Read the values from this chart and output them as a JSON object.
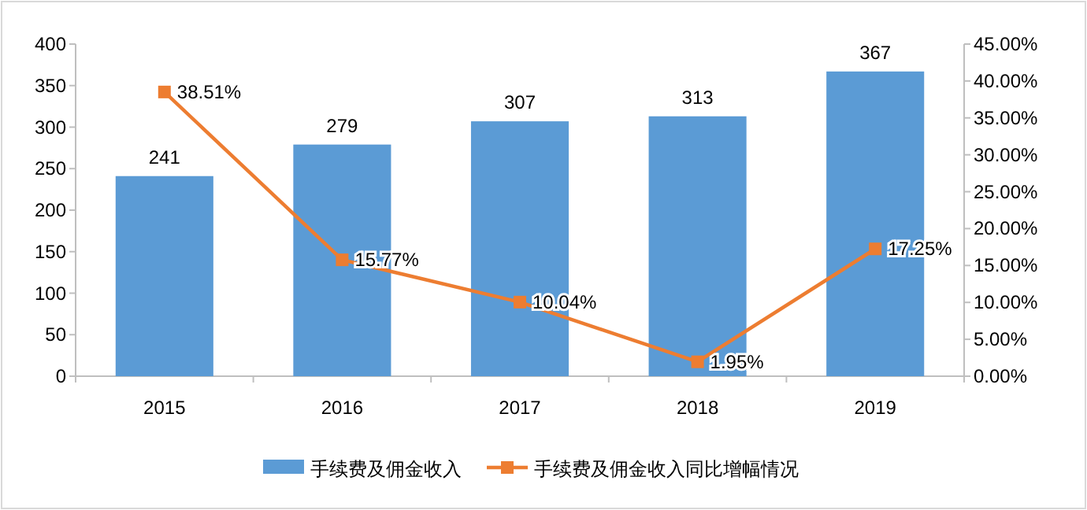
{
  "chart_data": {
    "type": "bar",
    "categories": [
      "2015",
      "2016",
      "2017",
      "2018",
      "2019"
    ],
    "ylim": [
      0,
      400
    ],
    "yticks": [
      0,
      50,
      100,
      150,
      200,
      250,
      300,
      350,
      400
    ],
    "y2lim": [
      0,
      45
    ],
    "y2ticks": [
      {
        "value": 0,
        "label": "0.00%"
      },
      {
        "value": 5,
        "label": "5.00%"
      },
      {
        "value": 10,
        "label": "10.00%"
      },
      {
        "value": 15,
        "label": "15.00%"
      },
      {
        "value": 20,
        "label": "20.00%"
      },
      {
        "value": 25,
        "label": "25.00%"
      },
      {
        "value": 30,
        "label": "30.00%"
      },
      {
        "value": 35,
        "label": "35.00%"
      },
      {
        "value": 40,
        "label": "40.00%"
      },
      {
        "value": 45,
        "label": "45.00%"
      }
    ],
    "series": [
      {
        "name": "手续费及佣金收入",
        "color": "#5b9bd5",
        "values": [
          241,
          279,
          307,
          313,
          367
        ],
        "value_labels": [
          "241",
          "279",
          "307",
          "313",
          "367"
        ]
      },
      {
        "name": "手续费及佣金收入同比增幅情况",
        "type": "line",
        "axis": "y2",
        "color": "#ed7d31",
        "marker": "square",
        "values": [
          38.51,
          15.77,
          10.04,
          1.95,
          17.25
        ],
        "value_labels": [
          "38.51%",
          "15.77%",
          "10.04%",
          "1.95%",
          "17.25%"
        ]
      }
    ],
    "legend": "bottom",
    "grid": false
  }
}
